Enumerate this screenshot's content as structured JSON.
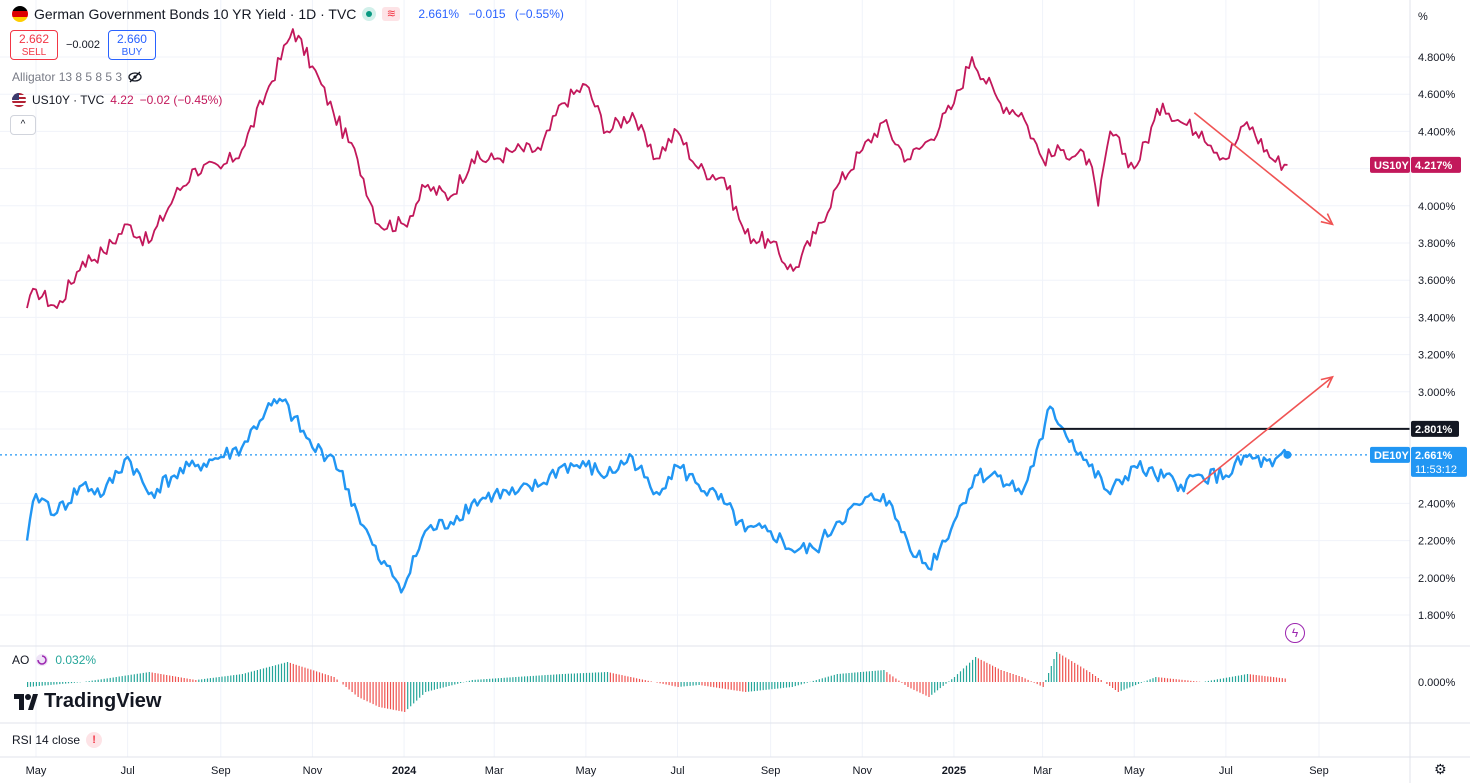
{
  "header": {
    "title": "German Government Bonds 10 YR Yield · 1D · TVC",
    "price": "2.661%",
    "change": "−0.015",
    "change_pct": "(−0.55%)",
    "sell_price": "2.662",
    "sell_label": "SELL",
    "spread": "−0.002",
    "buy_price": "2.660",
    "buy_label": "BUY",
    "flag_colors": [
      "#000000",
      "#dd0000",
      "#ffce00"
    ]
  },
  "indicators": {
    "alligator": "Alligator 13 8 5 8 5 3",
    "compare_symbol": "US10Y · TVC",
    "compare_value": "4.22",
    "compare_change": "−0.02 (−0.45%)",
    "ao_label": "AO",
    "ao_value": "0.032%",
    "rsi_label": "RSI 14 close"
  },
  "branding": {
    "logo_text": "TradingView"
  },
  "colors": {
    "us10y": "#c2185b",
    "de10y": "#2196f3",
    "arrow": "#f05454",
    "level_line": "#131722",
    "ao_up": "#26a69a",
    "ao_down": "#ef5350",
    "grid": "#f0f3fa"
  },
  "chart_data": [
    {
      "type": "line",
      "series_id": "US10Y",
      "x": [
        "2023-04-25",
        "2023-05-01",
        "2023-05-15",
        "2023-06-01",
        "2023-06-15",
        "2023-07-01",
        "2023-07-15",
        "2023-08-01",
        "2023-08-15",
        "2023-09-01",
        "2023-09-15",
        "2023-10-01",
        "2023-10-19",
        "2023-11-01",
        "2023-11-15",
        "2023-12-01",
        "2023-12-15",
        "2024-01-01",
        "2024-01-15",
        "2024-02-01",
        "2024-02-15",
        "2024-03-01",
        "2024-03-15",
        "2024-04-01",
        "2024-04-15",
        "2024-05-01",
        "2024-05-15",
        "2024-06-01",
        "2024-06-15",
        "2024-07-01",
        "2024-07-15",
        "2024-08-01",
        "2024-08-15",
        "2024-09-01",
        "2024-09-16",
        "2024-10-01",
        "2024-10-15",
        "2024-11-01",
        "2024-11-15",
        "2024-12-01",
        "2024-12-15",
        "2025-01-01",
        "2025-01-13",
        "2025-02-01",
        "2025-02-15",
        "2025-03-01",
        "2025-03-15",
        "2025-04-01",
        "2025-04-07",
        "2025-04-15",
        "2025-05-01",
        "2025-05-20",
        "2025-06-01",
        "2025-06-15",
        "2025-07-01",
        "2025-07-15",
        "2025-08-01",
        "2025-08-11"
      ],
      "values": [
        3.45,
        3.55,
        3.45,
        3.7,
        3.75,
        3.9,
        3.8,
        4.05,
        4.2,
        4.2,
        4.3,
        4.6,
        4.95,
        4.75,
        4.5,
        4.25,
        3.9,
        3.9,
        4.1,
        4.05,
        4.25,
        4.25,
        4.3,
        4.3,
        4.55,
        4.65,
        4.4,
        4.5,
        4.25,
        4.4,
        4.2,
        4.15,
        3.85,
        3.8,
        3.65,
        3.85,
        4.1,
        4.3,
        4.45,
        4.25,
        4.35,
        4.55,
        4.8,
        4.55,
        4.5,
        4.25,
        4.3,
        4.25,
        4.0,
        4.4,
        4.2,
        4.55,
        4.45,
        4.4,
        4.25,
        4.45,
        4.25,
        4.22
      ],
      "ylim": [
        1.7,
        5.0
      ],
      "last_label": "4.217%",
      "name": "US10Y"
    },
    {
      "type": "line",
      "series_id": "DE10Y",
      "x": [
        "2023-04-25",
        "2023-05-01",
        "2023-05-15",
        "2023-06-01",
        "2023-06-15",
        "2023-07-01",
        "2023-07-15",
        "2023-08-01",
        "2023-08-15",
        "2023-09-01",
        "2023-09-15",
        "2023-10-01",
        "2023-10-12",
        "2023-11-01",
        "2023-11-15",
        "2023-12-01",
        "2023-12-15",
        "2024-01-01",
        "2024-01-15",
        "2024-02-01",
        "2024-02-15",
        "2024-03-01",
        "2024-03-15",
        "2024-04-01",
        "2024-04-15",
        "2024-05-01",
        "2024-05-15",
        "2024-06-01",
        "2024-06-15",
        "2024-07-01",
        "2024-07-15",
        "2024-08-01",
        "2024-08-15",
        "2024-09-01",
        "2024-09-15",
        "2024-10-01",
        "2024-10-15",
        "2024-11-01",
        "2024-11-15",
        "2024-12-01",
        "2024-12-15",
        "2025-01-01",
        "2025-01-15",
        "2025-02-01",
        "2025-02-15",
        "2025-03-01",
        "2025-03-06",
        "2025-03-15",
        "2025-04-01",
        "2025-04-15",
        "2025-05-01",
        "2025-05-15",
        "2025-06-01",
        "2025-06-15",
        "2025-07-01",
        "2025-07-15",
        "2025-08-01",
        "2025-08-11"
      ],
      "values": [
        2.2,
        2.45,
        2.35,
        2.5,
        2.45,
        2.65,
        2.45,
        2.55,
        2.6,
        2.65,
        2.7,
        2.9,
        2.95,
        2.7,
        2.65,
        2.35,
        2.1,
        1.95,
        2.25,
        2.3,
        2.4,
        2.45,
        2.45,
        2.5,
        2.6,
        2.6,
        2.55,
        2.65,
        2.45,
        2.6,
        2.5,
        2.4,
        2.25,
        2.25,
        2.15,
        2.15,
        2.3,
        2.4,
        2.45,
        2.2,
        2.05,
        2.3,
        2.55,
        2.55,
        2.45,
        2.75,
        2.92,
        2.8,
        2.6,
        2.45,
        2.6,
        2.55,
        2.5,
        2.55,
        2.55,
        2.65,
        2.6,
        2.661
      ],
      "ylim": [
        1.7,
        5.0
      ],
      "last_label": "2.661%",
      "countdown": "11:53:12",
      "name": "DE10Y"
    }
  ],
  "level_line": {
    "value": 2.801,
    "label": "2.801%",
    "from": "2025-03-06"
  },
  "arrows": [
    {
      "from": [
        "2025-06-10",
        4.5
      ],
      "to": [
        "2025-09-10",
        3.9
      ]
    },
    {
      "from": [
        "2025-06-05",
        2.45
      ],
      "to": [
        "2025-09-10",
        3.08
      ]
    }
  ],
  "y_axis": {
    "unit_label": "%",
    "ticks": [
      "4.800%",
      "4.600%",
      "4.400%",
      "4.200%",
      "4.000%",
      "3.800%",
      "3.600%",
      "3.400%",
      "3.200%",
      "3.000%",
      "2.800%",
      "2.400%",
      "2.200%",
      "2.000%",
      "1.800%"
    ],
    "tick_values": [
      4.8,
      4.6,
      4.4,
      4.2,
      4.0,
      3.8,
      3.6,
      3.4,
      3.2,
      3.0,
      2.8,
      2.4,
      2.2,
      2.0,
      1.8
    ],
    "ao_tick": "0.000%"
  },
  "x_axis": {
    "labels": [
      "May",
      "Jul",
      "Sep",
      "Nov",
      "2024",
      "Mar",
      "May",
      "Jul",
      "Sep",
      "Nov",
      "2025",
      "Mar",
      "May",
      "Jul",
      "Sep"
    ],
    "dates": [
      "2023-05-01",
      "2023-07-01",
      "2023-09-01",
      "2023-11-01",
      "2024-01-01",
      "2024-03-01",
      "2024-05-01",
      "2024-07-01",
      "2024-09-01",
      "2024-11-01",
      "2025-01-01",
      "2025-03-01",
      "2025-05-01",
      "2025-07-01",
      "2025-09-01"
    ]
  },
  "ao_data": {
    "x": [
      "2023-04-25",
      "2023-06-01",
      "2023-07-15",
      "2023-08-15",
      "2023-09-15",
      "2023-10-15",
      "2023-11-15",
      "2023-12-01",
      "2023-12-15",
      "2024-01-01",
      "2024-01-15",
      "2024-02-15",
      "2024-03-15",
      "2024-04-15",
      "2024-05-15",
      "2024-06-15",
      "2024-07-01",
      "2024-07-15",
      "2024-08-15",
      "2024-09-15",
      "2024-10-15",
      "2024-11-15",
      "2024-12-01",
      "2024-12-15",
      "2025-01-01",
      "2025-01-15",
      "2025-02-01",
      "2025-02-15",
      "2025-03-01",
      "2025-03-10",
      "2025-04-01",
      "2025-04-20",
      "2025-05-15",
      "2025-06-15",
      "2025-07-15",
      "2025-08-11"
    ],
    "values": [
      -0.05,
      0.0,
      0.1,
      0.02,
      0.08,
      0.2,
      0.05,
      -0.15,
      -0.25,
      -0.3,
      -0.1,
      0.02,
      0.05,
      0.08,
      0.1,
      0.0,
      -0.05,
      -0.03,
      -0.1,
      -0.05,
      0.08,
      0.12,
      -0.05,
      -0.15,
      0.05,
      0.25,
      0.12,
      0.05,
      -0.05,
      0.3,
      0.1,
      -0.1,
      0.05,
      0.0,
      0.08,
      0.032
    ],
    "range": [
      -0.35,
      0.35
    ]
  }
}
